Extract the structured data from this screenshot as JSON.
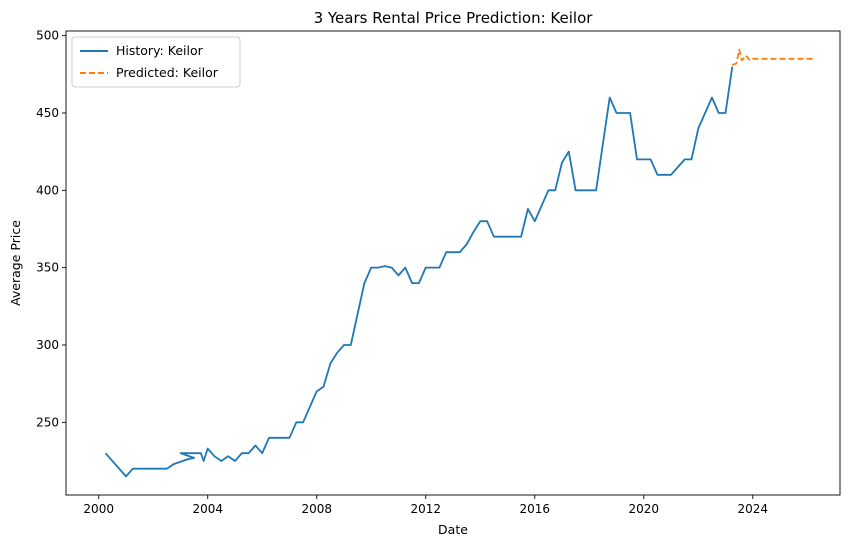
{
  "chart_data": {
    "type": "line",
    "title": "3 Years Rental Price Prediction: Keilor",
    "xlabel": "Date",
    "ylabel": "Average Price",
    "xlim": [
      1998.8,
      2027.2
    ],
    "ylim": [
      203,
      503
    ],
    "x_ticks": [
      2000,
      2004,
      2008,
      2012,
      2016,
      2020,
      2024
    ],
    "y_ticks": [
      250,
      300,
      350,
      400,
      450,
      500
    ],
    "grid": false,
    "legend_position": "top-left",
    "colors": {
      "history": "#1f77b4",
      "predicted": "#ff7f0e"
    },
    "series": [
      {
        "name": "History: Keilor",
        "style": "solid",
        "x": [
          2000.25,
          2001.0,
          2001.25,
          2002.0,
          2002.5,
          2002.75,
          2003.25,
          2003.5,
          2003.0,
          2003.75,
          2003.85,
          2004.0,
          2004.25,
          2004.5,
          2004.75,
          2005.0,
          2005.25,
          2005.5,
          2005.75,
          2006.0,
          2006.25,
          2006.5,
          2006.75,
          2007.0,
          2007.25,
          2007.5,
          2007.75,
          2008.0,
          2008.25,
          2008.5,
          2008.75,
          2009.0,
          2009.25,
          2009.5,
          2009.75,
          2010.0,
          2010.25,
          2010.5,
          2010.75,
          2011.0,
          2011.25,
          2011.5,
          2011.75,
          2012.0,
          2012.25,
          2012.5,
          2012.75,
          2013.0,
          2013.25,
          2013.5,
          2013.75,
          2014.0,
          2014.25,
          2014.5,
          2014.75,
          2015.0,
          2015.25,
          2015.5,
          2015.75,
          2016.0,
          2016.25,
          2016.5,
          2016.75,
          2017.0,
          2017.25,
          2017.5,
          2017.75,
          2018.0,
          2018.25,
          2018.5,
          2018.75,
          2019.0,
          2019.25,
          2019.5,
          2019.75,
          2020.0,
          2020.25,
          2020.5,
          2020.75,
          2021.0,
          2021.25,
          2021.5,
          2021.75,
          2022.0,
          2022.25,
          2022.5,
          2022.75,
          2023.0,
          2023.25
        ],
        "values": [
          230,
          215,
          220,
          220,
          220,
          223,
          226,
          227,
          230,
          230,
          225,
          233,
          228,
          225,
          228,
          225,
          230,
          230,
          235,
          230,
          240,
          240,
          240,
          240,
          250,
          250,
          260,
          270,
          273,
          288,
          295,
          300,
          300,
          320,
          340,
          350,
          350,
          351,
          350,
          345,
          350,
          340,
          340,
          350,
          350,
          350,
          360,
          360,
          360,
          365,
          373,
          380,
          380,
          370,
          370,
          370,
          370,
          370,
          388,
          380,
          390,
          400,
          400,
          418,
          425,
          400,
          400,
          400,
          400,
          430,
          460,
          450,
          450,
          450,
          420,
          420,
          420,
          410,
          410,
          410,
          415,
          420,
          420,
          440,
          450,
          460,
          450,
          450,
          480
        ]
      },
      {
        "name": "Predicted: Keilor",
        "style": "dashed",
        "x": [
          2023.25,
          2023.4,
          2023.5,
          2023.6,
          2023.75,
          2023.9,
          2024.0,
          2024.5,
          2025.0,
          2025.5,
          2026.0,
          2026.25
        ],
        "values": [
          481,
          482,
          491,
          484,
          487,
          484,
          485,
          485,
          485,
          485,
          485,
          485
        ]
      }
    ]
  }
}
